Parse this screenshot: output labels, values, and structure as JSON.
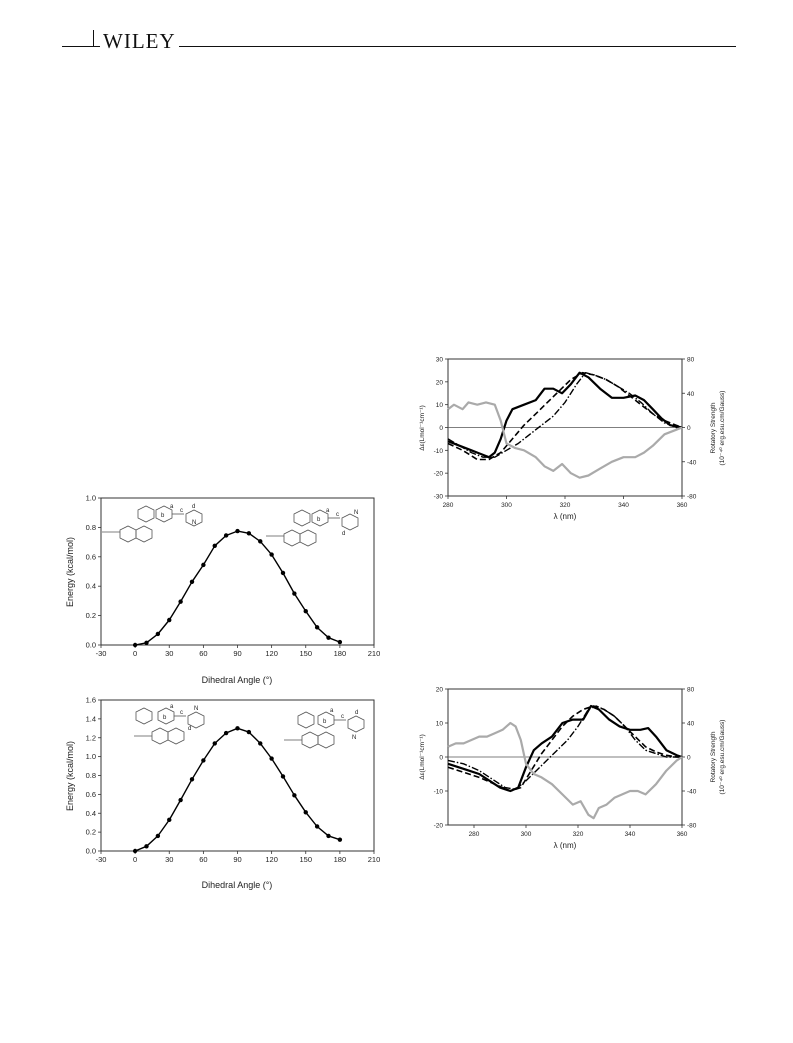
{
  "header": {
    "brand": "WILEY"
  },
  "energy_chart_1": {
    "type": "line",
    "xlabel": "Dihedral Angle (°)",
    "ylabel": "Energy (kcal/mol)",
    "xlim": [
      -30,
      210
    ],
    "ylim": [
      0,
      1.0
    ],
    "xticks": [
      "-30",
      "0",
      "30",
      "60",
      "90",
      "120",
      "150",
      "180",
      "210"
    ],
    "yticks": [
      "0.0",
      "0.2",
      "0.4",
      "0.6",
      "0.8",
      "1.0"
    ],
    "series": [
      {
        "x": [
          0,
          10,
          20,
          30,
          40,
          50,
          60,
          70,
          80,
          90,
          100,
          110,
          120,
          130,
          140,
          150,
          160,
          170,
          180
        ],
        "y": [
          0.0,
          0.015,
          0.075,
          0.17,
          0.295,
          0.43,
          0.545,
          0.675,
          0.745,
          0.775,
          0.76,
          0.705,
          0.615,
          0.49,
          0.35,
          0.23,
          0.12,
          0.05,
          0.02
        ]
      }
    ],
    "structure_labels_left": [
      "a",
      "b",
      "c",
      "d",
      "N"
    ],
    "structure_labels_right": [
      "a",
      "b",
      "c",
      "N",
      "d"
    ]
  },
  "energy_chart_2": {
    "type": "line",
    "xlabel": "Dihedral Angle (°)",
    "ylabel": "Energy (kcal/mol)",
    "xlim": [
      -30,
      210
    ],
    "ylim": [
      0,
      1.6
    ],
    "xticks": [
      "-30",
      "0",
      "30",
      "60",
      "90",
      "120",
      "150",
      "180",
      "210"
    ],
    "yticks": [
      "0.0",
      "0.2",
      "0.4",
      "0.6",
      "0.8",
      "1.0",
      "1.2",
      "1.4",
      "1.6"
    ],
    "series": [
      {
        "x": [
          0,
          10,
          20,
          30,
          40,
          50,
          60,
          70,
          80,
          90,
          100,
          110,
          120,
          130,
          140,
          150,
          160,
          170,
          180
        ],
        "y": [
          0.0,
          0.05,
          0.16,
          0.33,
          0.54,
          0.76,
          0.96,
          1.14,
          1.25,
          1.3,
          1.26,
          1.14,
          0.98,
          0.79,
          0.59,
          0.41,
          0.26,
          0.16,
          0.12
        ]
      }
    ],
    "structure_labels_left": [
      "a",
      "b",
      "c",
      "N",
      "d"
    ],
    "structure_labels_right": [
      "a",
      "b",
      "c",
      "d",
      "N"
    ]
  },
  "cd_chart_1": {
    "type": "line",
    "xlabel": "λ (nm)",
    "ylabel": "Δε(Lmol⁻¹cm⁻¹)",
    "y2label_line1": "Rotatory Strength",
    "y2label_line2": "(10⁻⁴⁰ erg.esu.cm/Gauss)",
    "xlim": [
      280,
      360
    ],
    "ylim": [
      -30,
      30
    ],
    "y2lim": [
      -80,
      80
    ],
    "xticks": [
      "280",
      "300",
      "320",
      "340",
      "360"
    ],
    "yticks": [
      "-30",
      "-20",
      "-10",
      "0",
      "10",
      "20",
      "30"
    ],
    "y2ticks": [
      "-80",
      "-40",
      "0",
      "40",
      "80"
    ],
    "series": [
      {
        "style": "solid-black",
        "x": [
          280,
          284,
          288,
          290,
          292,
          294,
          296,
          298,
          300,
          302,
          306,
          310,
          313,
          316,
          319,
          322,
          325,
          328,
          332,
          336,
          340,
          344,
          347,
          350,
          353,
          356,
          360
        ],
        "y": [
          -6,
          -8,
          -10,
          -11,
          -12,
          -13,
          -11,
          -5,
          3,
          8,
          10,
          12,
          17,
          17,
          15,
          19,
          24,
          22,
          17,
          13,
          13,
          14,
          12,
          8,
          4,
          1,
          0
        ]
      },
      {
        "style": "dashed-black",
        "x": [
          280,
          285,
          290,
          294,
          298,
          302,
          306,
          310,
          314,
          318,
          322,
          326,
          330,
          334,
          338,
          342,
          346,
          350,
          354,
          358,
          360
        ],
        "y": [
          -7,
          -10,
          -14,
          -14,
          -11,
          -5,
          1,
          6,
          11,
          16,
          21,
          24,
          23,
          21,
          18,
          14,
          10,
          6,
          3,
          1,
          0
        ]
      },
      {
        "style": "dashdot-black",
        "x": [
          280,
          284,
          288,
          292,
          296,
          300,
          304,
          308,
          312,
          316,
          320,
          324,
          327,
          330,
          334,
          338,
          342,
          346,
          350,
          354,
          358,
          360
        ],
        "y": [
          -5,
          -8,
          -11,
          -13,
          -13,
          -10,
          -7,
          -3,
          1,
          5,
          11,
          19,
          24,
          23,
          21,
          18,
          15,
          11,
          6,
          2,
          0,
          0
        ]
      },
      {
        "style": "solid-gray",
        "x": [
          280,
          282,
          285,
          287,
          290,
          293,
          296,
          298,
          300,
          303,
          306,
          310,
          313,
          316,
          319,
          322,
          325,
          328,
          332,
          336,
          340,
          344,
          347,
          350,
          354,
          358,
          360
        ],
        "y": [
          8,
          10,
          8,
          11,
          10,
          11,
          10,
          3,
          -7,
          -9,
          -10,
          -13,
          -17,
          -19,
          -16,
          -20,
          -22,
          -21,
          -18,
          -15,
          -13,
          -13,
          -11,
          -8,
          -3,
          -1,
          0
        ]
      }
    ]
  },
  "cd_chart_2": {
    "type": "line",
    "xlabel": "λ (nm)",
    "ylabel": "Δε(Lmol⁻¹cm⁻¹)",
    "y2label_line1": "Rotatory Strength",
    "y2label_line2": "(10⁻⁴⁰ erg.esu.cm/Gauss)",
    "xlim": [
      270,
      360
    ],
    "ylim": [
      -20,
      20
    ],
    "y2lim": [
      -80,
      80
    ],
    "xticks": [
      "280",
      "300",
      "320",
      "340",
      "360"
    ],
    "yticks": [
      "-20",
      "-10",
      "0",
      "10",
      "20"
    ],
    "y2ticks": [
      "-80",
      "-40",
      "0",
      "40",
      "80"
    ],
    "series": [
      {
        "style": "solid-black",
        "x": [
          270,
          274,
          278,
          282,
          286,
          290,
          294,
          297,
          300,
          303,
          306,
          310,
          314,
          318,
          322,
          325,
          328,
          332,
          336,
          340,
          344,
          347,
          350,
          354,
          358,
          360
        ],
        "y": [
          -2,
          -3,
          -4,
          -5,
          -7,
          -9,
          -10,
          -9,
          -3,
          2,
          4,
          6,
          10,
          11,
          11,
          15,
          14,
          11,
          9,
          8,
          8,
          8.5,
          6,
          2,
          0.5,
          0
        ]
      },
      {
        "style": "dashed-black",
        "x": [
          270,
          276,
          282,
          288,
          294,
          298,
          302,
          306,
          310,
          314,
          318,
          322,
          326,
          330,
          334,
          338,
          342,
          346,
          350,
          354,
          358,
          360
        ],
        "y": [
          -3,
          -4.5,
          -6,
          -8,
          -10,
          -9,
          -4,
          1,
          5,
          9,
          12,
          14,
          15,
          14,
          12,
          9,
          6,
          3,
          1.5,
          0.5,
          0,
          0
        ]
      },
      {
        "style": "dashdot-black",
        "x": [
          270,
          276,
          282,
          288,
          292,
          296,
          300,
          304,
          308,
          312,
          316,
          320,
          324,
          327,
          330,
          334,
          338,
          342,
          346,
          350,
          354,
          358,
          360
        ],
        "y": [
          -1,
          -2,
          -4,
          -7,
          -9,
          -9.5,
          -7,
          -4,
          -1,
          2,
          5,
          9,
          14,
          15,
          14,
          12,
          9,
          5,
          2,
          1,
          0,
          0,
          0
        ]
      },
      {
        "style": "solid-gray",
        "x": [
          270,
          273,
          276,
          279,
          282,
          285,
          288,
          291,
          294,
          296,
          298,
          300,
          303,
          306,
          310,
          314,
          318,
          321,
          324,
          326,
          328,
          331,
          334,
          337,
          340,
          343,
          346,
          350,
          354,
          358,
          360
        ],
        "y": [
          3,
          4,
          4,
          5,
          6,
          6,
          7,
          8,
          10,
          9,
          5,
          -2,
          -5,
          -6,
          -8,
          -11,
          -14,
          -13,
          -17,
          -18,
          -15,
          -14,
          -12,
          -11,
          -10,
          -10,
          -11,
          -8,
          -4,
          -1,
          0
        ]
      }
    ]
  }
}
